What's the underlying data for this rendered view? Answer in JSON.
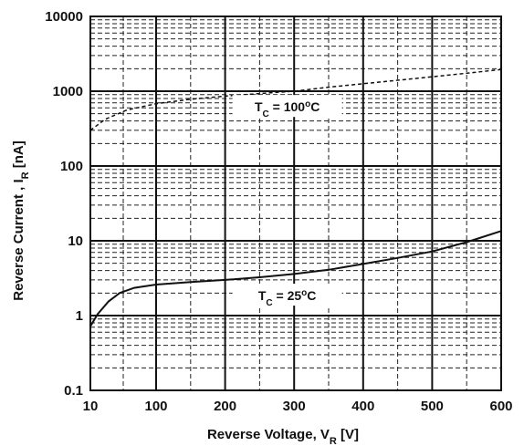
{
  "chart_data": {
    "type": "line",
    "title": "",
    "xlabel": {
      "main": "Reverse Voltage, V",
      "sub": "R",
      "unit": " [V]"
    },
    "ylabel": {
      "main": "Reverse Current , I",
      "sub": "R",
      "unit": " [nA]"
    },
    "xlim": [
      10,
      600
    ],
    "ylim": [
      0.1,
      10000
    ],
    "y_scale": "log",
    "grid": true,
    "x_tick_labels": [
      "10",
      "100",
      "200",
      "300",
      "400",
      "500",
      "600"
    ],
    "x_tick_values": [
      10,
      100,
      200,
      300,
      400,
      500,
      600
    ],
    "y_tick_labels": [
      "0.1",
      "1",
      "10",
      "100",
      "1000",
      "10000"
    ],
    "y_tick_values": [
      0.1,
      1,
      10,
      100,
      1000,
      10000
    ],
    "series": [
      {
        "style": "dashed",
        "x": [
          10,
          30,
          60,
          100,
          150,
          200,
          250,
          300,
          350,
          400,
          450,
          500,
          550,
          600
        ],
        "y": [
          300,
          420,
          560,
          680,
          780,
          860,
          930,
          1000,
          1130,
          1260,
          1400,
          1560,
          1740,
          1950
        ]
      },
      {
        "style": "solid",
        "x": [
          10,
          20,
          35,
          50,
          70,
          100,
          150,
          200,
          250,
          300,
          350,
          400,
          450,
          500,
          550,
          600
        ],
        "y": [
          0.72,
          1.05,
          1.55,
          2.0,
          2.35,
          2.6,
          2.8,
          3.0,
          3.25,
          3.6,
          4.1,
          4.9,
          5.9,
          7.2,
          9.6,
          13.5
        ]
      }
    ],
    "annotations": [
      {
        "prefix": "T",
        "sub": "C",
        "mid": " = 100",
        "sup": "o",
        "suffix": "C",
        "x": 290,
        "y": 600
      },
      {
        "prefix": "T",
        "sub": "C",
        "mid": " = 25",
        "sup": "o",
        "suffix": "C",
        "x": 290,
        "y": 1.8
      }
    ]
  }
}
